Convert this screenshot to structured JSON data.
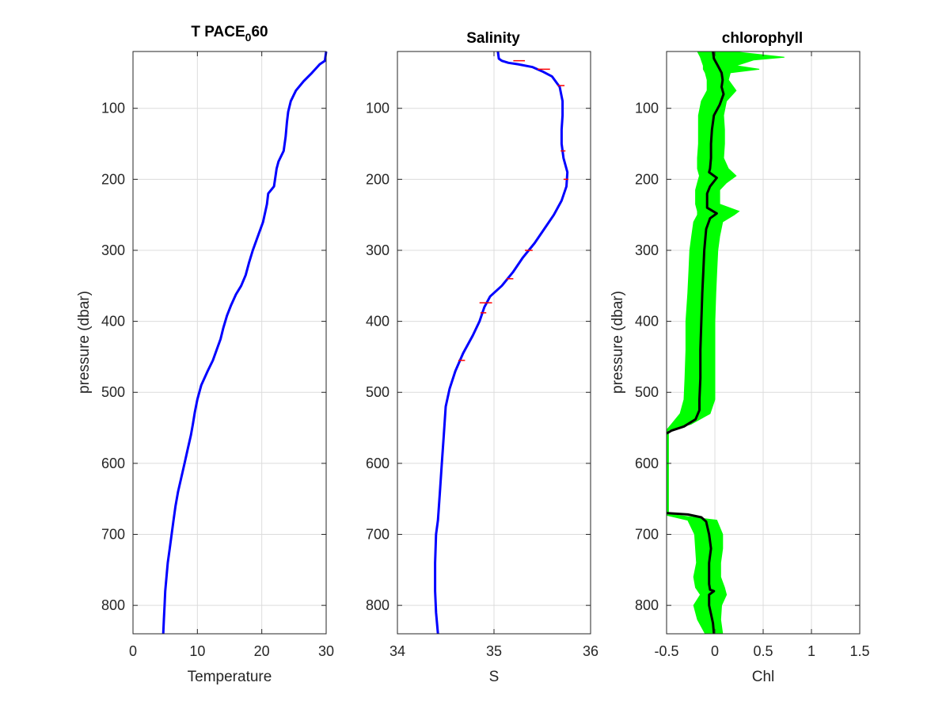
{
  "chart_data": [
    {
      "id": "temperature",
      "type": "line",
      "title": "T PACE",
      "title_subscript": "0",
      "title_suffix": "60",
      "xlabel": "Temperature",
      "ylabel": "pressure (dbar)",
      "xlim": [
        0,
        30
      ],
      "ylim": [
        20,
        840
      ],
      "y_reversed": true,
      "xticks": [
        0,
        10,
        20,
        30
      ],
      "yticks": [
        100,
        200,
        300,
        400,
        500,
        600,
        700,
        800
      ],
      "grid": true,
      "series": [
        {
          "color": "#0000ff",
          "x": [
            30.0,
            29.8,
            29.0,
            27.8,
            26.5,
            25.3,
            24.5,
            24.1,
            23.9,
            23.7,
            23.4,
            22.6,
            22.3,
            22.1,
            21.9,
            21.0,
            20.8,
            20.2,
            19.4,
            18.6,
            18.0,
            17.5,
            16.8,
            16.0,
            15.2,
            14.6,
            14.0,
            13.6,
            13.0,
            12.4,
            11.6,
            10.6,
            10.0,
            9.6,
            9.3,
            9.0,
            8.5,
            8.0,
            7.5,
            7.0,
            6.6,
            6.3,
            6.0,
            5.7,
            5.4,
            5.2,
            5.0,
            4.9,
            4.8,
            4.7
          ],
          "y": [
            20,
            33,
            38,
            50,
            62,
            75,
            90,
            105,
            120,
            140,
            160,
            175,
            185,
            198,
            210,
            220,
            235,
            260,
            280,
            300,
            318,
            335,
            350,
            362,
            378,
            392,
            410,
            425,
            440,
            455,
            470,
            490,
            510,
            528,
            545,
            560,
            580,
            600,
            620,
            640,
            660,
            680,
            700,
            720,
            740,
            760,
            780,
            800,
            820,
            840
          ]
        }
      ]
    },
    {
      "id": "salinity",
      "type": "line",
      "title": "Salinity",
      "xlabel": "S",
      "ylabel": "",
      "xlim": [
        34,
        36
      ],
      "ylim": [
        20,
        840
      ],
      "y_reversed": true,
      "xticks": [
        34,
        35,
        36
      ],
      "yticks": [
        100,
        200,
        300,
        400,
        500,
        600,
        700,
        800
      ],
      "grid": true,
      "series": [
        {
          "color": "#0000ff",
          "x": [
            35.04,
            35.05,
            35.08,
            35.15,
            35.25,
            35.4,
            35.5,
            35.6,
            35.68,
            35.71,
            35.71,
            35.7,
            35.7,
            35.72,
            35.76,
            35.75,
            35.7,
            35.62,
            35.52,
            35.42,
            35.3,
            35.2,
            35.08,
            34.96,
            34.9,
            34.85,
            34.78,
            34.68,
            34.6,
            34.54,
            34.5,
            34.48,
            34.46,
            34.44,
            34.42,
            34.4,
            34.39,
            34.39,
            34.4,
            34.42
          ],
          "y": [
            20,
            30,
            33,
            36,
            38,
            42,
            48,
            55,
            70,
            90,
            110,
            130,
            150,
            170,
            190,
            210,
            230,
            250,
            270,
            290,
            310,
            330,
            350,
            365,
            380,
            400,
            420,
            445,
            470,
            495,
            520,
            560,
            600,
            640,
            680,
            700,
            740,
            780,
            810,
            840
          ]
        }
      ],
      "spikes": {
        "color": "#ff0000",
        "segments": [
          {
            "y": 33,
            "x0": 35.2,
            "x1": 35.32
          },
          {
            "y": 45,
            "x0": 35.45,
            "x1": 35.58
          },
          {
            "y": 68,
            "x0": 35.66,
            "x1": 35.73
          },
          {
            "y": 160,
            "x0": 35.69,
            "x1": 35.74
          },
          {
            "y": 200,
            "x0": 35.72,
            "x1": 35.77
          },
          {
            "y": 300,
            "x0": 35.32,
            "x1": 35.4
          },
          {
            "y": 340,
            "x0": 35.13,
            "x1": 35.2
          },
          {
            "y": 374,
            "x0": 34.85,
            "x1": 34.98
          },
          {
            "y": 388,
            "x0": 34.86,
            "x1": 34.92
          },
          {
            "y": 455,
            "x0": 34.63,
            "x1": 34.7
          }
        ]
      }
    },
    {
      "id": "chlorophyll",
      "type": "line",
      "title": "chlorophyll",
      "xlabel": "Chl",
      "ylabel": "pressure (dbar)",
      "xlim": [
        -0.5,
        1.5
      ],
      "ylim": [
        20,
        840
      ],
      "y_reversed": true,
      "xticks": [
        -0.5,
        0,
        0.5,
        1,
        1.5
      ],
      "xtick_labels": [
        "-0.5",
        "0",
        "0.5",
        "1",
        "1.5"
      ],
      "yticks": [
        100,
        200,
        300,
        400,
        500,
        600,
        700,
        800
      ],
      "grid": true,
      "band": {
        "color": "#00ff00",
        "y": [
          20,
          28,
          32,
          40,
          45,
          50,
          60,
          75,
          90,
          110,
          130,
          150,
          170,
          185,
          195,
          205,
          215,
          235,
          245,
          250,
          260,
          280,
          300,
          330,
          360,
          400,
          440,
          480,
          510,
          530,
          545,
          553,
          558,
          670,
          673,
          680,
          700,
          720,
          740,
          760,
          775,
          785,
          800,
          820,
          840
        ],
        "lo": [
          -0.18,
          -0.15,
          -0.14,
          -0.12,
          -0.12,
          -0.1,
          -0.08,
          -0.08,
          -0.14,
          -0.17,
          -0.17,
          -0.17,
          -0.18,
          -0.18,
          -0.16,
          -0.18,
          -0.2,
          -0.2,
          -0.18,
          -0.18,
          -0.22,
          -0.24,
          -0.26,
          -0.27,
          -0.28,
          -0.3,
          -0.3,
          -0.31,
          -0.32,
          -0.36,
          -0.45,
          -0.5,
          -0.5,
          -0.5,
          -0.5,
          -0.28,
          -0.21,
          -0.2,
          -0.19,
          -0.22,
          -0.2,
          -0.15,
          -0.22,
          -0.18,
          -0.1
        ],
        "hi": [
          0.18,
          0.72,
          0.4,
          0.22,
          0.46,
          0.16,
          0.14,
          0.22,
          0.12,
          0.09,
          0.1,
          0.1,
          0.09,
          0.14,
          0.22,
          0.12,
          0.05,
          0.05,
          0.25,
          0.2,
          0.08,
          0.05,
          0.03,
          0.02,
          0.01,
          0.0,
          0.0,
          0.0,
          0.0,
          -0.05,
          -0.25,
          -0.48,
          -0.48,
          -0.48,
          -0.4,
          0.02,
          0.08,
          0.08,
          0.06,
          0.06,
          0.1,
          0.12,
          0.07,
          0.06,
          0.08
        ]
      },
      "series": [
        {
          "color": "#000000",
          "x": [
            -0.02,
            -0.01,
            0.03,
            0.07,
            0.08,
            0.07,
            0.09,
            0.05,
            -0.01,
            -0.03,
            -0.04,
            -0.04,
            -0.05,
            -0.06,
            0.02,
            -0.05,
            -0.08,
            -0.08,
            0.02,
            -0.05,
            -0.09,
            -0.11,
            -0.12,
            -0.13,
            -0.14,
            -0.15,
            -0.15,
            -0.16,
            -0.16,
            -0.2,
            -0.32,
            -0.45,
            -0.5
          ],
          "y": [
            20,
            30,
            40,
            50,
            60,
            70,
            80,
            95,
            110,
            130,
            150,
            170,
            185,
            190,
            198,
            210,
            220,
            240,
            248,
            255,
            270,
            300,
            330,
            360,
            400,
            440,
            480,
            510,
            525,
            538,
            548,
            554,
            558
          ]
        },
        {
          "color": "#000000",
          "x": [
            -0.5,
            -0.28,
            -0.14,
            -0.09,
            -0.06,
            -0.04,
            -0.06,
            -0.06,
            -0.05,
            -0.01,
            -0.06,
            -0.06,
            -0.02,
            -0.01
          ],
          "y": [
            670,
            672,
            676,
            682,
            700,
            720,
            740,
            770,
            778,
            780,
            785,
            800,
            825,
            840
          ]
        }
      ]
    }
  ]
}
